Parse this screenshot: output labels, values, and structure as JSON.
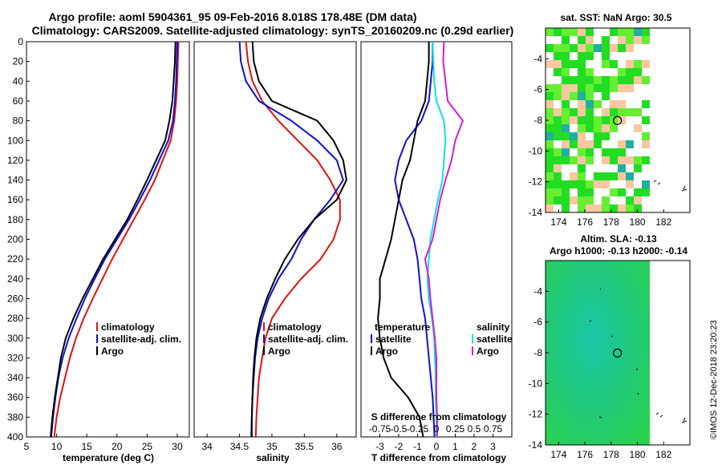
{
  "header": {
    "title_line1": "Argo profile: aoml 5904361_95 09-Feb-2016 8.018S 178.48E (DM data)",
    "title_line2": "Climatology: CARS2009. Satellite-adjusted climatology: synTS_20160209.nc (0.29d earlier)"
  },
  "credit": "©IMOS 12-Dec-2018 23:20:23",
  "colors": {
    "climatology": "#e01010",
    "satellite_adj": "#1010d8",
    "argo": "#000000",
    "salinity_argo": "#d020d0",
    "salinity_sat": "#10e0e8",
    "land_green": "#22dd22",
    "ocean_tan": "#f8c8a0",
    "ssh_green": "#22c860",
    "ssh_teal": "#10c8b0"
  },
  "chart_data": [
    {
      "type": "line",
      "name": "temperature-profile",
      "xlabel": "temperature (deg C)",
      "xlim": [
        5,
        32
      ],
      "xticks": [
        5,
        10,
        15,
        20,
        25,
        30
      ],
      "ylim": [
        400,
        0
      ],
      "yticks": [
        0,
        20,
        40,
        60,
        80,
        100,
        120,
        140,
        160,
        180,
        200,
        220,
        240,
        260,
        280,
        300,
        320,
        340,
        360,
        380,
        400
      ],
      "legend": [
        "climatology",
        "satellite-adj. clim.",
        "Argo"
      ],
      "series": [
        {
          "name": "climatology",
          "color": "#e01010",
          "points": [
            [
              30.2,
              0
            ],
            [
              30.1,
              20
            ],
            [
              30.0,
              40
            ],
            [
              29.8,
              60
            ],
            [
              29.5,
              80
            ],
            [
              28.9,
              100
            ],
            [
              27.6,
              120
            ],
            [
              26.3,
              140
            ],
            [
              24.6,
              160
            ],
            [
              22.8,
              180
            ],
            [
              21.0,
              200
            ],
            [
              19.2,
              220
            ],
            [
              17.6,
              240
            ],
            [
              16.0,
              260
            ],
            [
              14.5,
              280
            ],
            [
              13.2,
              300
            ],
            [
              12.2,
              320
            ],
            [
              11.4,
              340
            ],
            [
              10.6,
              360
            ],
            [
              10.0,
              380
            ],
            [
              9.6,
              400
            ]
          ]
        },
        {
          "name": "satellite-adj. clim.",
          "color": "#1010d8",
          "points": [
            [
              30.0,
              0
            ],
            [
              29.9,
              20
            ],
            [
              29.8,
              40
            ],
            [
              29.6,
              60
            ],
            [
              29.3,
              80
            ],
            [
              28.5,
              100
            ],
            [
              27.0,
              120
            ],
            [
              25.5,
              140
            ],
            [
              23.8,
              160
            ],
            [
              22.0,
              180
            ],
            [
              20.0,
              200
            ],
            [
              18.0,
              220
            ],
            [
              16.3,
              240
            ],
            [
              14.7,
              260
            ],
            [
              13.3,
              280
            ],
            [
              12.0,
              300
            ],
            [
              11.0,
              320
            ],
            [
              10.3,
              340
            ],
            [
              9.8,
              360
            ],
            [
              9.4,
              380
            ],
            [
              9.1,
              400
            ]
          ]
        },
        {
          "name": "Argo",
          "color": "#000000",
          "points": [
            [
              29.7,
              0
            ],
            [
              29.6,
              20
            ],
            [
              29.4,
              40
            ],
            [
              29.2,
              60
            ],
            [
              28.7,
              80
            ],
            [
              28.0,
              100
            ],
            [
              26.5,
              120
            ],
            [
              25.0,
              140
            ],
            [
              23.4,
              160
            ],
            [
              21.7,
              180
            ],
            [
              19.7,
              200
            ],
            [
              17.7,
              220
            ],
            [
              16.0,
              240
            ],
            [
              14.3,
              260
            ],
            [
              12.8,
              280
            ],
            [
              11.5,
              300
            ],
            [
              10.7,
              320
            ],
            [
              10.2,
              340
            ],
            [
              9.7,
              360
            ],
            [
              9.3,
              380
            ],
            [
              9.0,
              400
            ]
          ]
        }
      ]
    },
    {
      "type": "line",
      "name": "salinity-profile",
      "xlabel": "salinity",
      "xlim": [
        33.8,
        36.3
      ],
      "xticks": [
        34,
        34.5,
        35,
        35.5,
        36
      ],
      "ylim": [
        400,
        0
      ],
      "legend": [
        "climatology",
        "satellite-adj. clim.",
        "Argo"
      ],
      "series": [
        {
          "name": "climatology",
          "color": "#e01010",
          "points": [
            [
              34.6,
              0
            ],
            [
              34.63,
              20
            ],
            [
              34.7,
              40
            ],
            [
              34.85,
              60
            ],
            [
              35.1,
              80
            ],
            [
              35.4,
              100
            ],
            [
              35.7,
              120
            ],
            [
              35.9,
              140
            ],
            [
              36.05,
              160
            ],
            [
              36.05,
              180
            ],
            [
              35.95,
              200
            ],
            [
              35.75,
              220
            ],
            [
              35.45,
              240
            ],
            [
              35.2,
              260
            ],
            [
              35.0,
              280
            ],
            [
              34.9,
              300
            ],
            [
              34.85,
              320
            ],
            [
              34.8,
              340
            ],
            [
              34.78,
              360
            ],
            [
              34.76,
              380
            ],
            [
              34.75,
              400
            ]
          ]
        },
        {
          "name": "satellite-adj. clim.",
          "color": "#1010d8",
          "points": [
            [
              34.5,
              0
            ],
            [
              34.52,
              20
            ],
            [
              34.6,
              40
            ],
            [
              34.8,
              60
            ],
            [
              35.3,
              80
            ],
            [
              35.7,
              100
            ],
            [
              36.0,
              120
            ],
            [
              36.1,
              140
            ],
            [
              35.9,
              160
            ],
            [
              35.65,
              180
            ],
            [
              35.45,
              200
            ],
            [
              35.3,
              220
            ],
            [
              35.1,
              240
            ],
            [
              34.95,
              260
            ],
            [
              34.85,
              280
            ],
            [
              34.78,
              300
            ],
            [
              34.74,
              320
            ],
            [
              34.72,
              340
            ],
            [
              34.7,
              360
            ],
            [
              34.69,
              380
            ],
            [
              34.68,
              400
            ]
          ]
        },
        {
          "name": "Argo",
          "color": "#000000",
          "points": [
            [
              34.7,
              0
            ],
            [
              34.72,
              20
            ],
            [
              34.8,
              40
            ],
            [
              35.0,
              60
            ],
            [
              35.7,
              80
            ],
            [
              35.95,
              100
            ],
            [
              36.1,
              120
            ],
            [
              36.15,
              140
            ],
            [
              36.0,
              160
            ],
            [
              35.65,
              180
            ],
            [
              35.4,
              200
            ],
            [
              35.2,
              220
            ],
            [
              35.05,
              240
            ],
            [
              34.92,
              260
            ],
            [
              34.82,
              280
            ],
            [
              34.76,
              300
            ],
            [
              34.73,
              320
            ],
            [
              34.71,
              340
            ],
            [
              34.7,
              360
            ],
            [
              34.69,
              380
            ],
            [
              34.69,
              400
            ]
          ]
        }
      ]
    },
    {
      "type": "line",
      "name": "difference-profile",
      "xlabel": "T difference from climatology",
      "xlim": [
        -4,
        4
      ],
      "xticks": [
        -3,
        -2,
        -1,
        0,
        1,
        2,
        3
      ],
      "top_xlabel": "S difference from climatology",
      "top_ticks": [
        "-0.75",
        "-0.5",
        "-0.25",
        "0",
        "0.25",
        "0.5",
        "0.75"
      ],
      "ylim": [
        400,
        0
      ],
      "legend_temperature": [
        "temperature",
        "satellite",
        "Argo"
      ],
      "legend_salinity": [
        "salinity",
        "satellite",
        "Argo"
      ],
      "series": [
        {
          "name": "temperature satellite",
          "color": "#1010d8",
          "points": [
            [
              -0.2,
              0
            ],
            [
              -0.2,
              20
            ],
            [
              -0.3,
              40
            ],
            [
              -0.4,
              60
            ],
            [
              -0.8,
              80
            ],
            [
              -1.6,
              100
            ],
            [
              -2.0,
              120
            ],
            [
              -2.2,
              140
            ],
            [
              -2.0,
              160
            ],
            [
              -1.6,
              180
            ],
            [
              -1.2,
              200
            ],
            [
              -1.0,
              220
            ],
            [
              -0.9,
              240
            ],
            [
              -0.8,
              260
            ],
            [
              -0.6,
              280
            ],
            [
              -0.5,
              300
            ],
            [
              -0.4,
              320
            ],
            [
              -0.3,
              340
            ],
            [
              -0.2,
              360
            ],
            [
              -0.15,
              380
            ],
            [
              -0.1,
              400
            ]
          ]
        },
        {
          "name": "temperature Argo",
          "color": "#000000",
          "points": [
            [
              -0.4,
              0
            ],
            [
              -0.4,
              20
            ],
            [
              -0.5,
              40
            ],
            [
              -0.6,
              60
            ],
            [
              -1.0,
              80
            ],
            [
              -1.2,
              100
            ],
            [
              -1.4,
              120
            ],
            [
              -1.8,
              140
            ],
            [
              -2.0,
              160
            ],
            [
              -2.2,
              180
            ],
            [
              -2.4,
              200
            ],
            [
              -2.7,
              220
            ],
            [
              -3.0,
              240
            ],
            [
              -3.0,
              260
            ],
            [
              -3.1,
              280
            ],
            [
              -3.0,
              300
            ],
            [
              -2.8,
              320
            ],
            [
              -2.4,
              340
            ],
            [
              -1.5,
              360
            ],
            [
              -0.9,
              380
            ],
            [
              -0.7,
              400
            ]
          ]
        },
        {
          "name": "salinity satellite",
          "color": "#10e0e8",
          "points": [
            [
              -0.05,
              0
            ],
            [
              -0.04,
              20
            ],
            [
              -0.03,
              40
            ],
            [
              0.0,
              60
            ],
            [
              0.1,
              80
            ],
            [
              0.12,
              100
            ],
            [
              0.1,
              120
            ],
            [
              0.08,
              140
            ],
            [
              0.02,
              160
            ],
            [
              -0.03,
              180
            ],
            [
              -0.08,
              200
            ],
            [
              -0.1,
              220
            ],
            [
              -0.12,
              240
            ],
            [
              -0.1,
              260
            ],
            [
              -0.06,
              280
            ],
            [
              -0.03,
              300
            ],
            [
              -0.02,
              320
            ],
            [
              -0.01,
              340
            ],
            [
              -0.01,
              360
            ],
            [
              0.0,
              380
            ],
            [
              0.0,
              400
            ]
          ]
        },
        {
          "name": "salinity Argo",
          "color": "#d020d0",
          "points": [
            [
              0.1,
              0
            ],
            [
              0.09,
              20
            ],
            [
              0.12,
              40
            ],
            [
              0.15,
              60
            ],
            [
              0.35,
              80
            ],
            [
              0.25,
              100
            ],
            [
              0.2,
              120
            ],
            [
              0.12,
              140
            ],
            [
              0.05,
              160
            ],
            [
              0.0,
              180
            ],
            [
              -0.05,
              200
            ],
            [
              -0.15,
              220
            ],
            [
              -0.1,
              240
            ],
            [
              -0.08,
              260
            ],
            [
              -0.05,
              280
            ],
            [
              -0.02,
              300
            ],
            [
              0.0,
              320
            ],
            [
              0.0,
              340
            ],
            [
              0.0,
              360
            ],
            [
              0.01,
              380
            ],
            [
              0.01,
              400
            ]
          ]
        }
      ]
    },
    {
      "type": "heatmap",
      "name": "sst-map",
      "title": "sat. SST: NaN Argo: 30.5",
      "xlim": [
        173,
        184
      ],
      "xticks": [
        174,
        176,
        178,
        180,
        182
      ],
      "ylim": [
        -14,
        -2
      ],
      "yticks": [
        -4,
        -6,
        -8,
        -10,
        -12,
        -14
      ],
      "argo_position": [
        178.48,
        -8.018
      ]
    },
    {
      "type": "heatmap",
      "name": "altimetry-map",
      "title_line1": "Altim. SLA: -0.13",
      "title_line2": "Argo h1000: -0.13 h2000: -0.14",
      "xlim": [
        173,
        184
      ],
      "xticks": [
        174,
        176,
        178,
        180,
        182
      ],
      "ylim": [
        -14,
        -2
      ],
      "yticks": [
        -4,
        -6,
        -8,
        -10,
        -12,
        -14
      ],
      "argo_position": [
        178.48,
        -8.018
      ]
    }
  ]
}
